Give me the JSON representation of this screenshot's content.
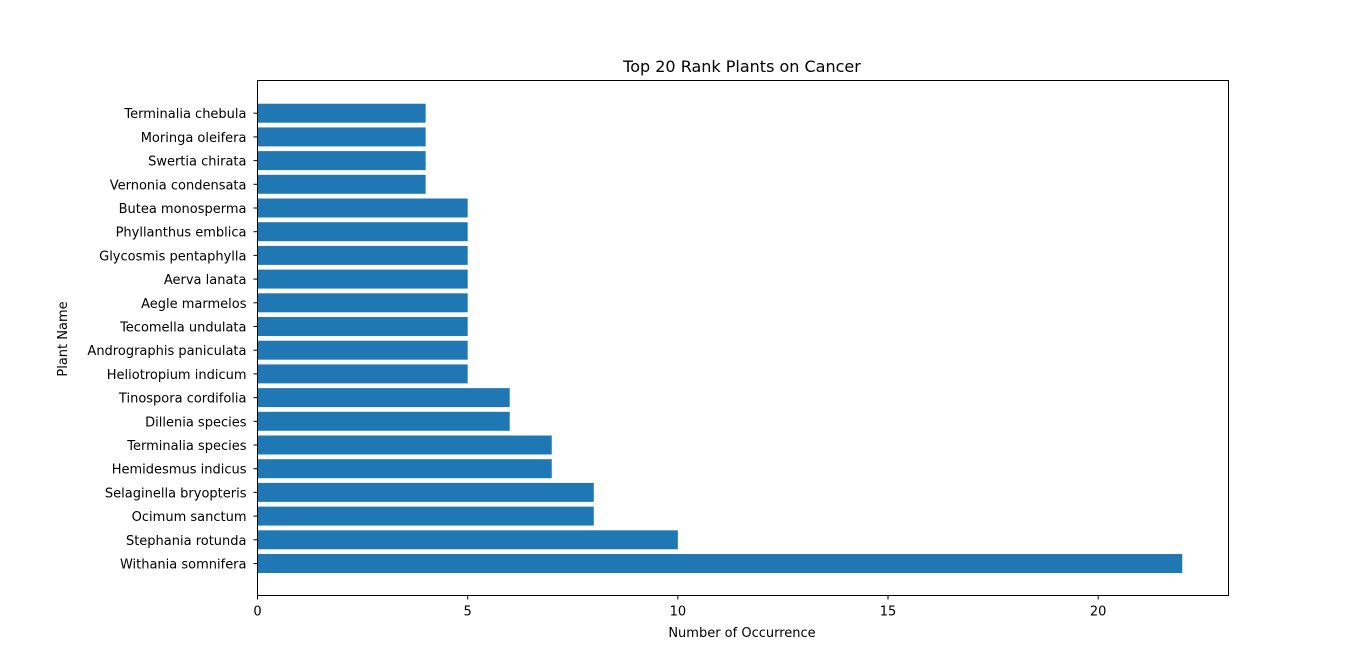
{
  "chart_data": {
    "type": "bar",
    "orientation": "horizontal",
    "title": "Top 20 Rank Plants on Cancer",
    "xlabel": "Number of Occurrence",
    "ylabel": "Plant Name",
    "xlim": [
      0,
      23.1
    ],
    "xticks": [
      0,
      5,
      10,
      15,
      20
    ],
    "grid": false,
    "bar_color": "#1f77b4",
    "categories": [
      "Withania somnifera",
      "Stephania rotunda",
      "Ocimum sanctum",
      "Selaginella bryopteris",
      "Hemidesmus indicus",
      "Terminalia species",
      "Dillenia species",
      "Tinospora cordifolia",
      "Heliotropium indicum",
      "Andrographis paniculata",
      "Tecomella undulata",
      "Aegle marmelos",
      "Aerva lanata",
      "Glycosmis pentaphylla",
      "Phyllanthus emblica",
      "Butea monosperma",
      "Vernonia condensata",
      "Swertia chirata",
      "Moringa oleifera",
      "Terminalia chebula"
    ],
    "values": [
      22,
      10,
      8,
      8,
      7,
      7,
      6,
      6,
      5,
      5,
      5,
      5,
      5,
      5,
      5,
      5,
      4,
      4,
      4,
      4
    ]
  }
}
